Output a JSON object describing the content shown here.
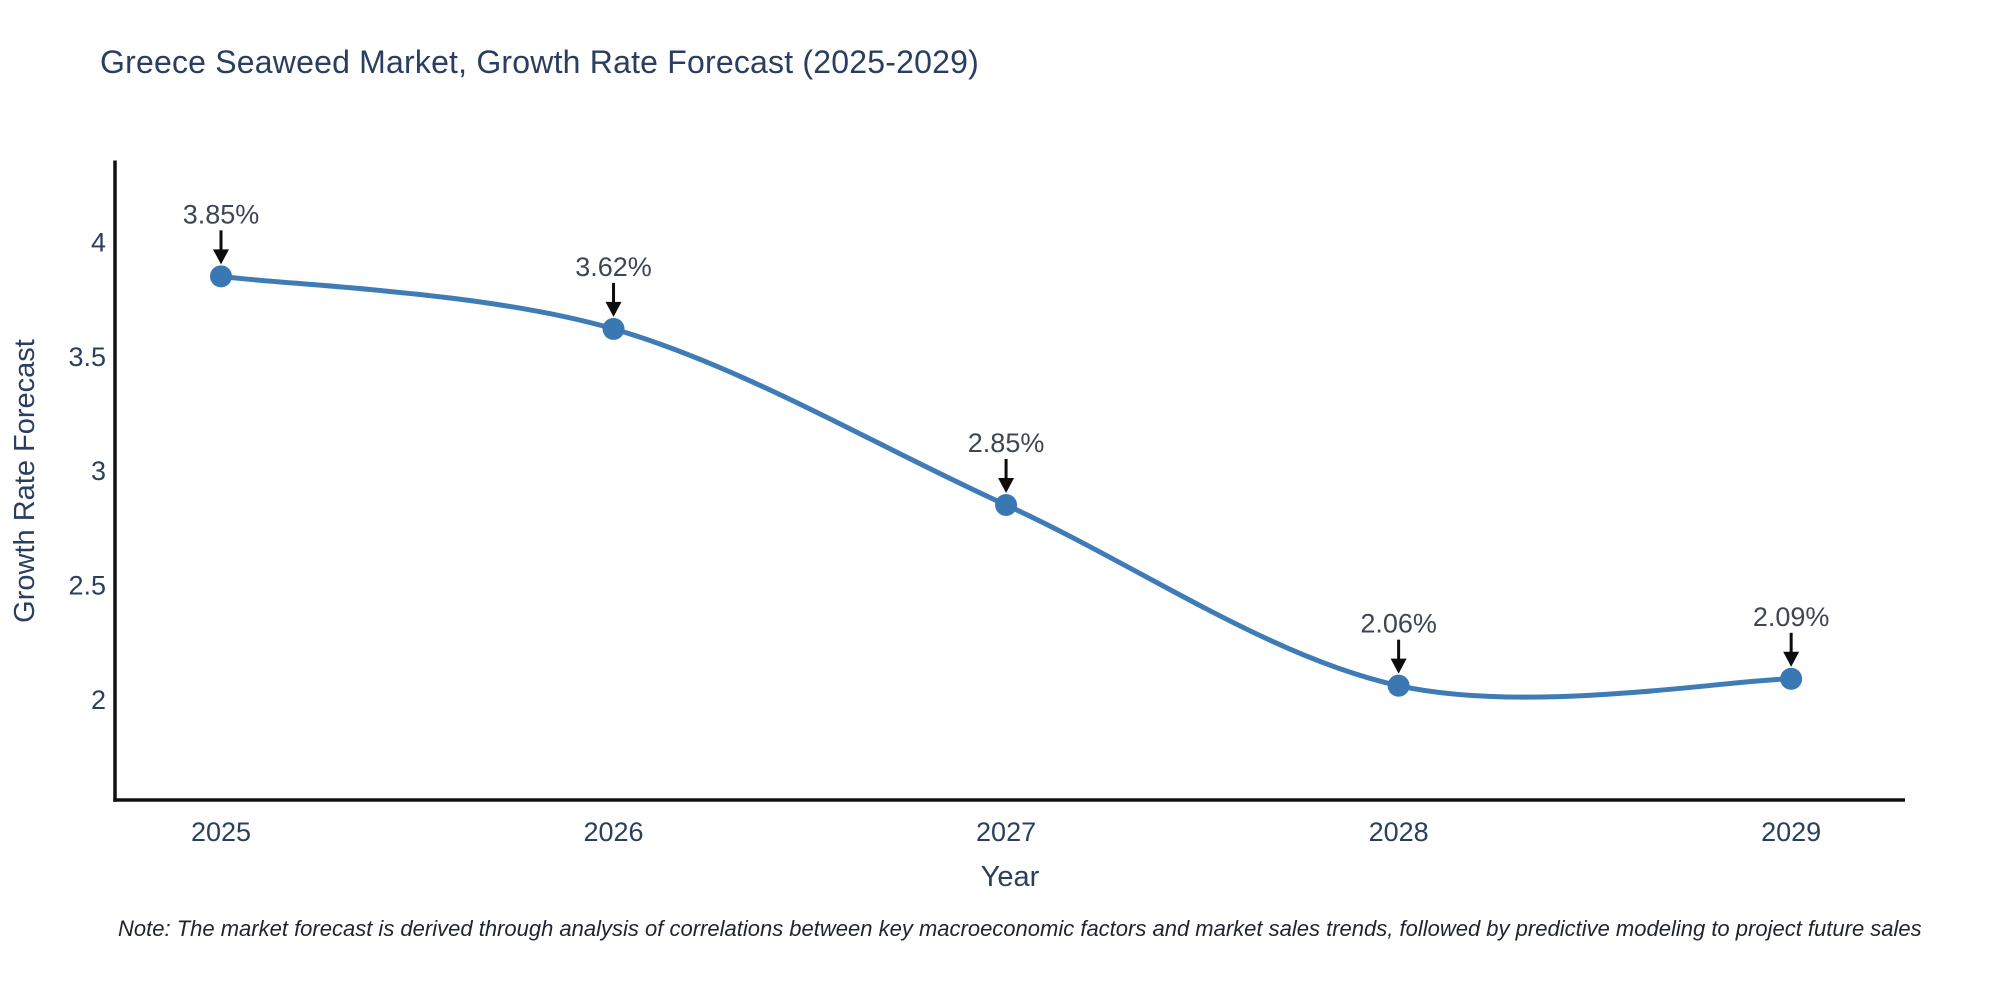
{
  "title": "Greece Seaweed Market, Growth Rate Forecast (2025-2029)",
  "note": "Note: The market forecast is derived through analysis of correlations between key macroeconomic factors and market sales trends, followed by predictive modeling to project future sales",
  "chart_data": {
    "type": "line",
    "title": "Greece Seaweed Market, Growth Rate Forecast (2025-2029)",
    "xlabel": "Year",
    "ylabel": "Growth Rate Forecast",
    "x": [
      2025,
      2026,
      2027,
      2028,
      2029
    ],
    "values": [
      3.85,
      3.62,
      2.85,
      2.06,
      2.09
    ],
    "point_labels": [
      "3.85%",
      "3.62%",
      "2.85%",
      "2.06%",
      "2.09%"
    ],
    "xticks": [
      2025,
      2026,
      2027,
      2028,
      2029
    ],
    "yticks": [
      2,
      2.5,
      3,
      3.5,
      4
    ],
    "xlim": [
      2024.73,
      2029.29
    ],
    "ylim": [
      1.56,
      4.35
    ],
    "curve": "spline",
    "grid": false,
    "legend": false,
    "line_color": "#3f7cb6",
    "marker_color": "#3a78b4",
    "axis_color": "#111111",
    "annotation_arrow_color": "#0d0d0d",
    "annotation_text_color": "#3d4653"
  },
  "colors": {
    "title": "#2a3f5f",
    "tick": "#2a3f5f",
    "note": "#1f2430",
    "background": "#ffffff"
  }
}
